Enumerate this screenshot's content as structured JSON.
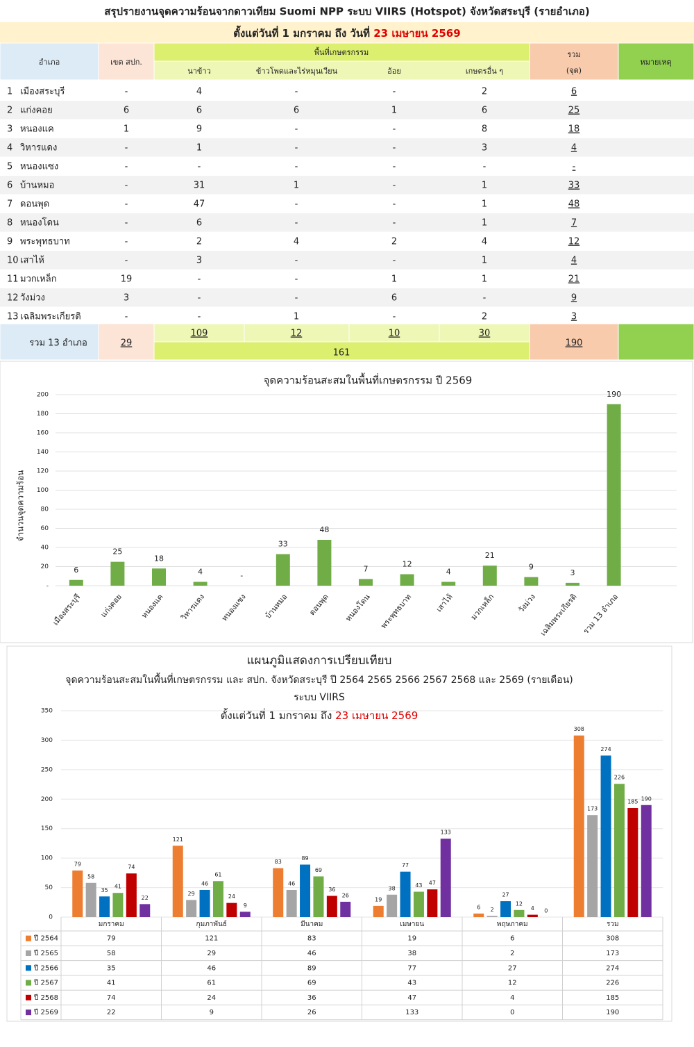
{
  "header": {
    "title": "สรุปรายงานจุดความร้อนจากดาวเทียม Suomi NPP ระบบ VIIRS (Hotspot) จังหวัดสระบุรี (รายอำเภอ)",
    "period": "ตั้งแต่วันที่ 1 มกราคม  ถึง วันที่",
    "period_date": "23 เมษายน 2569"
  },
  "table": {
    "columns": {
      "district": "อำเภอ",
      "spk": "เขต สปก.",
      "agri": "พื้นที่เกษตรกรรม",
      "agri_cols": [
        "นาข้าว",
        "ข้าวโพดและไร่หมุนเวียน",
        "อ้อย",
        "เกษตรอื่น ๆ"
      ],
      "total": [
        "รวม",
        "(จุด)"
      ],
      "note": "หมายเหตุ"
    },
    "highlight_color": "#e00000",
    "rows": [
      {
        "no": 1,
        "name": "เมืองสระบุรี",
        "cells": [
          "-",
          4,
          "-",
          "-",
          2,
          6
        ]
      },
      {
        "no": 2,
        "name": "แก่งคอย",
        "cells": [
          6,
          6,
          6,
          1,
          6,
          25
        ],
        "highlight": true
      },
      {
        "no": 3,
        "name": "หนองแค",
        "cells": [
          1,
          9,
          "-",
          "-",
          8,
          18
        ]
      },
      {
        "no": 4,
        "name": "วิหารแดง",
        "cells": [
          "-",
          1,
          "-",
          "-",
          3,
          4
        ]
      },
      {
        "no": 5,
        "name": "หนองแซง",
        "cells": [
          "-",
          "-",
          "-",
          "-",
          "-",
          "-"
        ]
      },
      {
        "no": 6,
        "name": "บ้านหมอ",
        "cells": [
          "-",
          31,
          1,
          "-",
          1,
          33
        ],
        "highlight": true
      },
      {
        "no": 7,
        "name": "ดอนพุด",
        "cells": [
          "-",
          47,
          "-",
          "-",
          1,
          48
        ]
      },
      {
        "no": 8,
        "name": "หนองโดน",
        "cells": [
          "-",
          6,
          "-",
          "-",
          1,
          7
        ]
      },
      {
        "no": 9,
        "name": "พระพุทธบาท",
        "cells": [
          "-",
          2,
          4,
          2,
          4,
          12
        ]
      },
      {
        "no": 10,
        "name": "เสาไห้",
        "cells": [
          "-",
          3,
          "-",
          "-",
          1,
          4
        ]
      },
      {
        "no": 11,
        "name": "มวกเหล็ก",
        "cells": [
          19,
          "-",
          "-",
          1,
          1,
          21
        ],
        "highlight": true
      },
      {
        "no": 12,
        "name": "วังม่วง",
        "cells": [
          3,
          "-",
          "-",
          6,
          "-",
          9
        ]
      },
      {
        "no": 13,
        "name": "เฉลิมพระเกียรติ",
        "cells": [
          "-",
          "-",
          1,
          "-",
          2,
          3
        ]
      }
    ],
    "total_row": {
      "label": "รวม 13 อำเภอ",
      "cells": [
        29,
        109,
        12,
        10,
        30,
        190
      ],
      "agri_total": 161
    }
  },
  "chart_data": [
    {
      "type": "bar",
      "title": "จุดความร้อนสะสมในพื้นที่เกษตรกรรม ปี 2569",
      "y_label": "จำนวนจุดความร้อน",
      "categories": [
        "เมืองสระบุรี",
        "แก่งคอย",
        "หนองแค",
        "วิหารแดง",
        "หนองแซง",
        "บ้านหมอ",
        "ดอนพุด",
        "หนองโดน",
        "พระพุทธบาท",
        "เสาไห้",
        "มวกเหล็ก",
        "วังม่วง",
        "เฉลิมพระเกียรติ",
        "รวม 13 อำเภอ"
      ],
      "values": [
        6,
        25,
        18,
        4,
        null,
        33,
        48,
        7,
        12,
        4,
        21,
        9,
        3,
        190
      ],
      "value_labels": [
        "6",
        "25",
        "18",
        "4",
        "-",
        "33",
        "48",
        "7",
        "12",
        "4",
        "21",
        "9",
        "3",
        "190"
      ],
      "color": "#70ad47",
      "label_color": "#ff0000",
      "ylim": [
        0,
        200
      ],
      "yticks": [
        {
          "value": 0,
          "label": "-"
        },
        20,
        40,
        60,
        80,
        100,
        120,
        140,
        160,
        180,
        200
      ],
      "grid": true
    },
    {
      "type": "grouped_bar",
      "title": "แผนภูมิแสดงการเปรียบเทียบ",
      "subtitles": [
        "จุดความร้อนสะสมในพื้นที่เกษตรกรรม  และ สปก. จังหวัดสระบุรี ปี  2564 2565 2566 2567 2568 และ 2569 (รายเดือน)",
        "ระบบ VIIRS"
      ],
      "period": "ตั้งแต่วันที่ 1 มกราคม ถึง",
      "period_date": "23 เมษายน 2569",
      "categories": [
        "มกราคม",
        "กุมภาพันธ์",
        "มีนาคม",
        "เมษายน",
        "พฤษภาคม",
        "รวม"
      ],
      "series": [
        {
          "name": "ปี 2564",
          "color": "#ed7d31",
          "values": [
            79,
            121,
            83,
            19,
            6,
            308
          ]
        },
        {
          "name": "ปี 2565",
          "color": "#a5a5a5",
          "values": [
            58,
            29,
            46,
            38,
            2,
            173
          ]
        },
        {
          "name": "ปี 2566",
          "color": "#0070c0",
          "values": [
            35,
            46,
            89,
            77,
            27,
            274
          ]
        },
        {
          "name": "ปี 2567",
          "color": "#70ad47",
          "values": [
            41,
            61,
            69,
            43,
            12,
            226
          ]
        },
        {
          "name": "ปี 2568",
          "color": "#c00000",
          "values": [
            74,
            24,
            36,
            47,
            4,
            185
          ]
        },
        {
          "name": "ปี 2569",
          "color": "#7030a0",
          "values": [
            22,
            9,
            26,
            133,
            0,
            190
          ]
        }
      ],
      "ylim": [
        0,
        350
      ],
      "yticks": [
        0,
        50,
        100,
        150,
        200,
        250,
        300,
        350
      ],
      "grid": true,
      "data_table": true
    }
  ]
}
